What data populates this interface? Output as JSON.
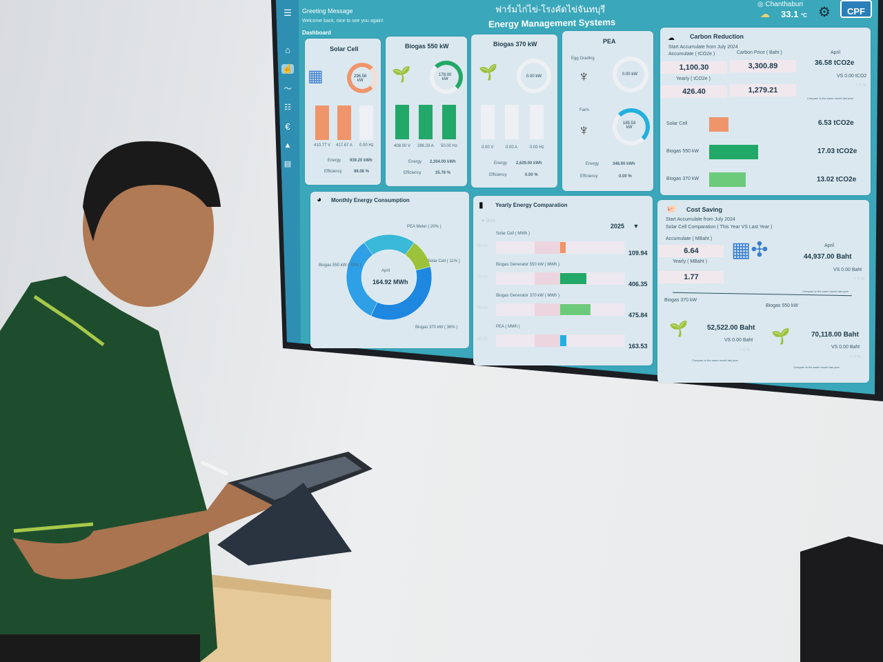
{
  "photo": {
    "subject": "man-with-tablet",
    "colors": {
      "shirt": "#1e4d2e",
      "shirt_stripe": "#a7c84a",
      "wall": "#e4e6e8",
      "tv_bezel": "#1b1e22"
    }
  },
  "dashboard": {
    "colors": {
      "background": "#3ba7ba",
      "card": "#dbe8ef",
      "solar": "#f0946a",
      "biogas550": "#22a868",
      "biogas370": "#6ccb7a",
      "pea": "#22b0e0"
    },
    "greeting": "Greeting Message",
    "welcome": "Welcome back, nice to see you again!",
    "section": "Dashboard",
    "title_thai": "ฟาร์มไก่ไข่-โรงคัดไข่จันทบุรี",
    "title": "Energy Management Systems",
    "location": "Chanthaburi",
    "temperature": "33.1",
    "temp_unit": "°C",
    "logo": "CPF",
    "sidebar": [
      "menu-icon",
      "home-icon",
      "hand-pointer-icon",
      "trend-icon",
      "sliders-icon",
      "euro-icon",
      "bell-icon",
      "document-icon"
    ],
    "solar": {
      "title": "Solar Cell",
      "gauge": "296.56",
      "gauge_unit": "kW",
      "gauge_fill": 0.85,
      "v": "410.77 V",
      "a": "417.67 A",
      "hz": "0.00 Hz",
      "energy_label": "Energy",
      "energy": "939.20 kWh",
      "eff_label": "Efficiency",
      "eff": "98.08 %"
    },
    "biogas550": {
      "title": "Biogas 550 kW",
      "gauge": "178.00",
      "gauge_unit": "kW",
      "gauge_fill": 0.3,
      "v": "408.00 V",
      "a": "286.33 A",
      "hz": "50.00 Hz",
      "energy_label": "Energy",
      "energy": "2,304.00 kWh",
      "eff_label": "Efficiency",
      "eff": "35.78 %"
    },
    "biogas370": {
      "title": "Biogas 370 kW",
      "gauge": "0.00 kW",
      "gauge_fill": 0,
      "v": "0.00 V",
      "a": "0.00 A",
      "hz": "0.00 Hz",
      "energy_label": "Energy",
      "energy": "2,629.00 kWh",
      "eff_label": "Efficiency",
      "eff": "0.00 %"
    },
    "pea": {
      "title": "PEA",
      "egg_label": "Egg Grading",
      "egg_gauge": "0.00 kW",
      "farm_label": "Farm",
      "farm_gauge": "185.53",
      "farm_unit": "kW",
      "farm_fill": 0.4,
      "energy_label": "Energy",
      "energy": "348.90 kWh",
      "eff_label": "Efficiency",
      "eff": "0.00 %"
    },
    "carbon": {
      "title": "Carbon Reduction",
      "start": "Start Accumulate from July 2024",
      "acc_label": "Accumulate ( tCO2e )",
      "price_label": "Carbon Price ( Baht )",
      "acc": "1,100.30",
      "price": "3,300.89",
      "yearly_label": "Yearly ( tCO2e )",
      "yearly": "426.40",
      "yearly_price": "1,279.21",
      "month": "April",
      "month_value": "36.58 tCO2e",
      "vs": "VS 0.00 tCO2",
      "pct": "+ 0 %",
      "compare": "Compare to the same month last year",
      "rows": [
        {
          "label": "Solar Cell",
          "value": "6.53 tCO2e"
        },
        {
          "label": "Biogas 550 kW",
          "value": "17.03 tCO2e"
        },
        {
          "label": "Biogas 370 kW",
          "value": "13.02 tCO2e"
        }
      ]
    },
    "monthly": {
      "title": "Monthly Energy Consumption",
      "center_label": "April",
      "center_value": "164.92 MWh",
      "slices": [
        {
          "label": "PEA Meter ( 20% )",
          "pct": 20
        },
        {
          "label": "Solar Cell ( 11% )",
          "pct": 11
        },
        {
          "label": "Biogas 370 kW ( 36% )",
          "pct": 36
        },
        {
          "label": "Biogas 550 kW ( 33% )",
          "pct": 33
        }
      ]
    },
    "yearly": {
      "title": "Yearly Energy Comparation",
      "prev_year": "2024",
      "year": "2025",
      "rows": [
        {
          "label": "Solar Cell ( MWh )",
          "axis": "50.00",
          "value": "109.94"
        },
        {
          "label": "Biogas Generator 550 kW ( MWh )",
          "axis": "50.00",
          "value": "406.35"
        },
        {
          "label": "Biogas Generator 370 kW ( MWh )",
          "axis": "50.00",
          "value": "475.84"
        },
        {
          "label": "PEA ( MWh )",
          "axis": "50.00",
          "value": "163.53"
        }
      ]
    },
    "cost": {
      "title": "Cost Saving",
      "start": "Start Accumulate from July 2024",
      "compare_title": "Solar Cell Comparation ( This Year VS Last Year )",
      "acc_label": "Accumulate ( MBaht )",
      "acc": "6.64",
      "yearly_label": "Yearly ( MBaht )",
      "yearly": "1.77",
      "month": "April",
      "month_value": "44,937.00 Baht",
      "vs": "VS 0.00 Baht",
      "pct": "+ 0 %",
      "compare": "Compare to the same month last year",
      "b370_label": "Biogas 370 kW",
      "b370_value": "52,522.00 Baht",
      "b370_vs": "VS 0.00 Baht",
      "b370_pct": "+ 0 %",
      "b550_label": "Biogas 550 kW",
      "b550_value": "70,118.00 Baht",
      "b550_vs": "VS 0.00 Baht",
      "b550_pct": "+ 0 %"
    }
  }
}
